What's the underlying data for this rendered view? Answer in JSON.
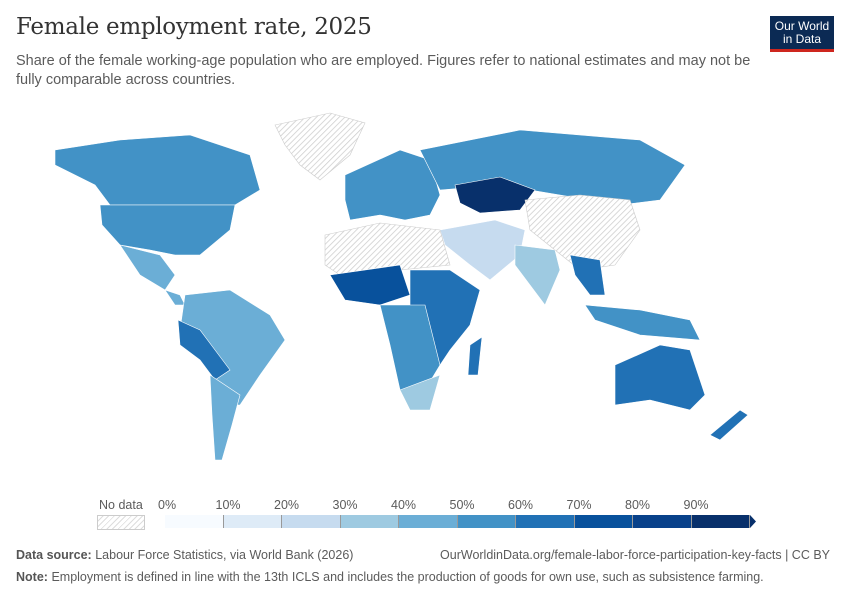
{
  "header": {
    "title": "Female employment rate, 2025",
    "subtitle": "Share of the female working-age population who are employed. Figures refer to national estimates and may not be fully comparable across countries.",
    "logo_text": "Our World in Data"
  },
  "legend": {
    "no_data_label": "No data",
    "ticks": [
      "0%",
      "10%",
      "20%",
      "30%",
      "40%",
      "50%",
      "60%",
      "70%",
      "80%",
      "90%"
    ],
    "colors": [
      "#f7fbff",
      "#deebf7",
      "#c6dbef",
      "#9ecae1",
      "#6baed6",
      "#4292c6",
      "#2171b5",
      "#08519c",
      "#08418a",
      "#08306b"
    ]
  },
  "footer": {
    "source_label": "Data source:",
    "source_text": "Labour Force Statistics, via World Bank (2026)",
    "url": "OurWorldinData.org/female-labor-force-participation-key-facts | CC BY",
    "note_label": "Note:",
    "note_text": "Employment is defined in line with the 13th ICLS and includes the production of goods for own use, such as subsistence farming."
  }
}
